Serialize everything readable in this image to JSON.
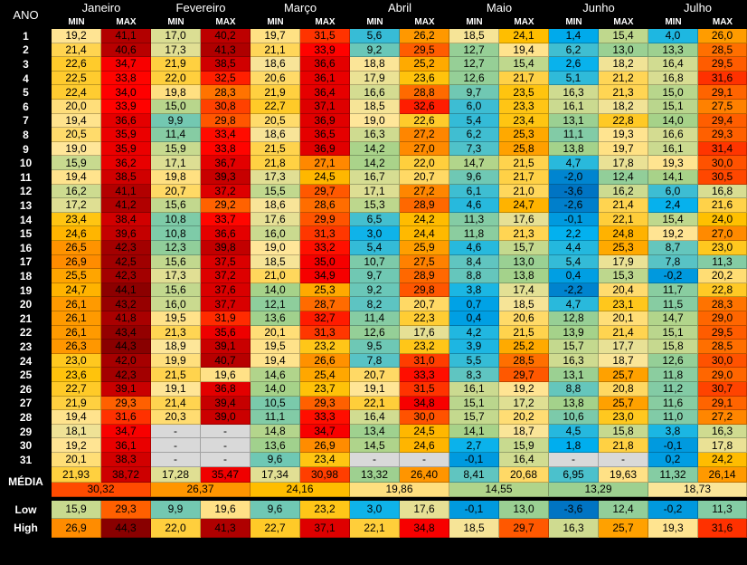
{
  "chart_data": {
    "type": "table",
    "row_header_label": "ANO",
    "min_label": "MIN",
    "max_label": "MAX",
    "average_label": "MÉDIA",
    "low_label": "Low",
    "high_label": "High",
    "months": [
      "Janeiro",
      "Fevereiro",
      "Março",
      "Abril",
      "Maio",
      "Junho",
      "Julho"
    ],
    "days": [
      "1",
      "2",
      "3",
      "4",
      "5",
      "6",
      "7",
      "8",
      "9",
      "10",
      "11",
      "12",
      "13",
      "14",
      "15",
      "16",
      "17",
      "18",
      "19",
      "20",
      "21",
      "22",
      "23",
      "24",
      "25",
      "26",
      "27",
      "28",
      "29",
      "30",
      "31"
    ],
    "rows": [
      [
        "19,2",
        "41,1",
        "17,0",
        "40,2",
        "19,7",
        "31,5",
        "5,6",
        "26,2",
        "18,5",
        "24,1",
        "1,4",
        "15,4",
        "4,0",
        "26,0"
      ],
      [
        "21,4",
        "40,6",
        "17,3",
        "41,3",
        "21,1",
        "33,9",
        "9,2",
        "29,5",
        "12,7",
        "19,4",
        "6,2",
        "13,0",
        "13,3",
        "28,5"
      ],
      [
        "22,6",
        "34,7",
        "21,9",
        "38,5",
        "18,6",
        "36,6",
        "18,8",
        "25,2",
        "12,7",
        "15,4",
        "2,6",
        "18,2",
        "16,4",
        "29,5"
      ],
      [
        "22,5",
        "33,8",
        "22,0",
        "32,5",
        "20,6",
        "36,1",
        "17,9",
        "23,6",
        "12,6",
        "21,7",
        "5,1",
        "21,2",
        "16,8",
        "31,6"
      ],
      [
        "22,4",
        "34,0",
        "19,8",
        "28,3",
        "21,9",
        "36,4",
        "16,6",
        "28,8",
        "9,7",
        "23,5",
        "16,3",
        "21,3",
        "15,0",
        "29,1"
      ],
      [
        "20,0",
        "33,9",
        "15,0",
        "30,8",
        "22,7",
        "37,1",
        "18,5",
        "32,6",
        "6,0",
        "23,3",
        "16,1",
        "18,2",
        "15,1",
        "27,5"
      ],
      [
        "19,4",
        "36,6",
        "9,9",
        "29,8",
        "20,5",
        "36,9",
        "19,0",
        "22,6",
        "5,4",
        "23,4",
        "13,1",
        "22,8",
        "14,0",
        "29,4"
      ],
      [
        "20,5",
        "35,9",
        "11,4",
        "33,4",
        "18,6",
        "36,5",
        "16,3",
        "27,2",
        "6,2",
        "25,3",
        "11,1",
        "19,3",
        "16,6",
        "29,3"
      ],
      [
        "19,0",
        "35,9",
        "15,9",
        "33,8",
        "21,5",
        "36,9",
        "14,2",
        "27,0",
        "7,3",
        "25,8",
        "13,8",
        "19,7",
        "16,1",
        "31,4"
      ],
      [
        "15,9",
        "36,2",
        "17,1",
        "36,7",
        "21,8",
        "27,1",
        "14,2",
        "22,0",
        "14,7",
        "21,5",
        "4,7",
        "17,8",
        "19,3",
        "30,0"
      ],
      [
        "19,4",
        "38,5",
        "19,8",
        "39,3",
        "17,3",
        "24,5",
        "16,7",
        "20,7",
        "9,6",
        "21,7",
        "-2,0",
        "12,4",
        "14,1",
        "30,5"
      ],
      [
        "16,2",
        "41,1",
        "20,7",
        "37,2",
        "15,5",
        "29,7",
        "17,1",
        "27,2",
        "6,1",
        "21,0",
        "-3,6",
        "16,2",
        "6,0",
        "16,8"
      ],
      [
        "17,2",
        "41,2",
        "15,6",
        "29,2",
        "18,6",
        "28,6",
        "15,3",
        "28,9",
        "4,6",
        "24,7",
        "-2,6",
        "21,4",
        "2,4",
        "21,6"
      ],
      [
        "23,4",
        "38,4",
        "10,8",
        "33,7",
        "17,6",
        "29,9",
        "6,5",
        "24,2",
        "11,3",
        "17,6",
        "-0,1",
        "22,1",
        "15,4",
        "24,0"
      ],
      [
        "24,6",
        "39,6",
        "10,8",
        "36,6",
        "16,0",
        "31,3",
        "3,0",
        "24,4",
        "11,8",
        "21,3",
        "2,2",
        "24,8",
        "19,2",
        "27,0"
      ],
      [
        "26,5",
        "42,3",
        "12,3",
        "39,8",
        "19,0",
        "33,2",
        "5,4",
        "25,9",
        "4,6",
        "15,7",
        "4,4",
        "25,3",
        "8,7",
        "23,0"
      ],
      [
        "26,9",
        "42,5",
        "15,6",
        "37,5",
        "18,5",
        "35,0",
        "10,7",
        "27,5",
        "8,4",
        "13,0",
        "5,4",
        "17,9",
        "7,8",
        "11,3"
      ],
      [
        "25,5",
        "42,3",
        "17,3",
        "37,2",
        "21,0",
        "34,9",
        "9,7",
        "28,9",
        "8,8",
        "13,8",
        "0,4",
        "15,3",
        "-0,2",
        "20,2"
      ],
      [
        "24,7",
        "44,1",
        "15,6",
        "37,6",
        "14,0",
        "25,3",
        "9,2",
        "29,8",
        "3,8",
        "17,4",
        "-2,2",
        "20,4",
        "11,7",
        "22,8"
      ],
      [
        "26,1",
        "43,2",
        "16,0",
        "37,7",
        "12,1",
        "28,7",
        "8,2",
        "20,7",
        "0,7",
        "18,5",
        "4,7",
        "23,1",
        "11,5",
        "28,3"
      ],
      [
        "26,1",
        "41,8",
        "19,5",
        "31,9",
        "13,6",
        "32,7",
        "11,4",
        "22,3",
        "0,4",
        "20,6",
        "12,8",
        "20,1",
        "14,7",
        "29,0"
      ],
      [
        "26,1",
        "43,4",
        "21,3",
        "35,6",
        "20,1",
        "31,3",
        "12,6",
        "17,6",
        "4,2",
        "21,5",
        "13,9",
        "21,4",
        "15,1",
        "29,5"
      ],
      [
        "26,3",
        "44,3",
        "18,9",
        "39,1",
        "19,5",
        "23,2",
        "9,5",
        "23,2",
        "3,9",
        "25,2",
        "15,7",
        "17,7",
        "15,8",
        "28,5"
      ],
      [
        "23,0",
        "42,0",
        "19,9",
        "40,7",
        "19,4",
        "26,6",
        "7,8",
        "31,0",
        "5,5",
        "28,5",
        "16,3",
        "18,7",
        "12,6",
        "30,0"
      ],
      [
        "23,6",
        "42,3",
        "21,5",
        "19,6",
        "14,6",
        "25,4",
        "20,7",
        "33,3",
        "8,3",
        "29,7",
        "13,1",
        "25,7",
        "11,8",
        "29,0"
      ],
      [
        "22,7",
        "39,1",
        "19,1",
        "36,8",
        "14,0",
        "23,7",
        "19,1",
        "31,5",
        "16,1",
        "19,2",
        "8,8",
        "20,8",
        "11,2",
        "30,7"
      ],
      [
        "21,9",
        "29,3",
        "21,4",
        "39,4",
        "10,5",
        "29,3",
        "22,1",
        "34,8",
        "15,1",
        "17,2",
        "13,8",
        "25,7",
        "11,6",
        "29,1"
      ],
      [
        "19,4",
        "31,6",
        "20,3",
        "39,0",
        "11,1",
        "33,3",
        "16,4",
        "30,0",
        "15,7",
        "20,2",
        "10,6",
        "23,0",
        "11,0",
        "27,2"
      ],
      [
        "18,1",
        "34,7",
        "-",
        "-",
        "14,8",
        "34,7",
        "13,4",
        "24,5",
        "14,1",
        "18,7",
        "4,5",
        "15,8",
        "3,8",
        "16,3"
      ],
      [
        "19,2",
        "36,1",
        "-",
        "-",
        "13,6",
        "26,9",
        "14,5",
        "24,6",
        "2,7",
        "15,9",
        "1,8",
        "21,8",
        "-0,1",
        "17,8"
      ],
      [
        "20,1",
        "38,3",
        "-",
        "-",
        "9,6",
        "23,4",
        "-",
        "-",
        "-0,1",
        "16,4",
        "-",
        "-",
        "0,2",
        "24,2"
      ]
    ],
    "average": [
      "21,93",
      "38,72",
      "17,28",
      "35,47",
      "17,34",
      "30,98",
      "13,32",
      "26,40",
      "8,41",
      "20,68",
      "6,95",
      "19,63",
      "11,32",
      "26,14"
    ],
    "average_combined": [
      "30,32",
      "26,37",
      "24,16",
      "19,86",
      "14,55",
      "13,29",
      "18,73"
    ],
    "low": [
      "15,9",
      "29,3",
      "9,9",
      "19,6",
      "9,6",
      "23,2",
      "3,0",
      "17,6",
      "-0,1",
      "13,0",
      "-3,6",
      "12,4",
      "-0,2",
      "11,3"
    ],
    "high": [
      "26,9",
      "44,3",
      "22,0",
      "41,3",
      "22,7",
      "37,1",
      "22,1",
      "34,8",
      "18,5",
      "29,7",
      "16,3",
      "25,7",
      "19,3",
      "31,6"
    ]
  }
}
